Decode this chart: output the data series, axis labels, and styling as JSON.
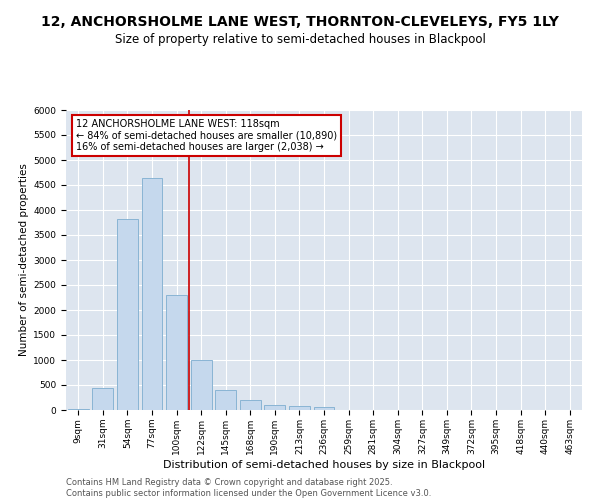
{
  "title": "12, ANCHORSHOLME LANE WEST, THORNTON-CLEVELEYS, FY5 1LY",
  "subtitle": "Size of property relative to semi-detached houses in Blackpool",
  "xlabel": "Distribution of semi-detached houses by size in Blackpool",
  "ylabel": "Number of semi-detached properties",
  "categories": [
    "9sqm",
    "31sqm",
    "54sqm",
    "77sqm",
    "100sqm",
    "122sqm",
    "145sqm",
    "168sqm",
    "190sqm",
    "213sqm",
    "236sqm",
    "259sqm",
    "281sqm",
    "304sqm",
    "327sqm",
    "349sqm",
    "372sqm",
    "395sqm",
    "418sqm",
    "440sqm",
    "463sqm"
  ],
  "bar_heights": [
    25,
    450,
    3820,
    4650,
    2300,
    1000,
    400,
    205,
    110,
    80,
    55,
    0,
    0,
    0,
    0,
    0,
    0,
    0,
    0,
    0,
    0
  ],
  "bar_color": "#c5d8ed",
  "bar_edge_color": "#89b4d4",
  "vline_color": "#cc0000",
  "vline_position": 4.5,
  "annotation_title": "12 ANCHORSHOLME LANE WEST: 118sqm",
  "annotation_line1": "← 84% of semi-detached houses are smaller (10,890)",
  "annotation_line2": "16% of semi-detached houses are larger (2,038) →",
  "annotation_box_color": "#cc0000",
  "ylim": [
    0,
    6000
  ],
  "yticks": [
    0,
    500,
    1000,
    1500,
    2000,
    2500,
    3000,
    3500,
    4000,
    4500,
    5000,
    5500,
    6000
  ],
  "plot_bg_color": "#dde5ef",
  "grid_color": "#ffffff",
  "footer_line1": "Contains HM Land Registry data © Crown copyright and database right 2025.",
  "footer_line2": "Contains public sector information licensed under the Open Government Licence v3.0.",
  "title_fontsize": 10,
  "subtitle_fontsize": 8.5,
  "ylabel_fontsize": 7.5,
  "xlabel_fontsize": 8,
  "tick_fontsize": 6.5,
  "footer_fontsize": 6,
  "annot_fontsize": 7
}
